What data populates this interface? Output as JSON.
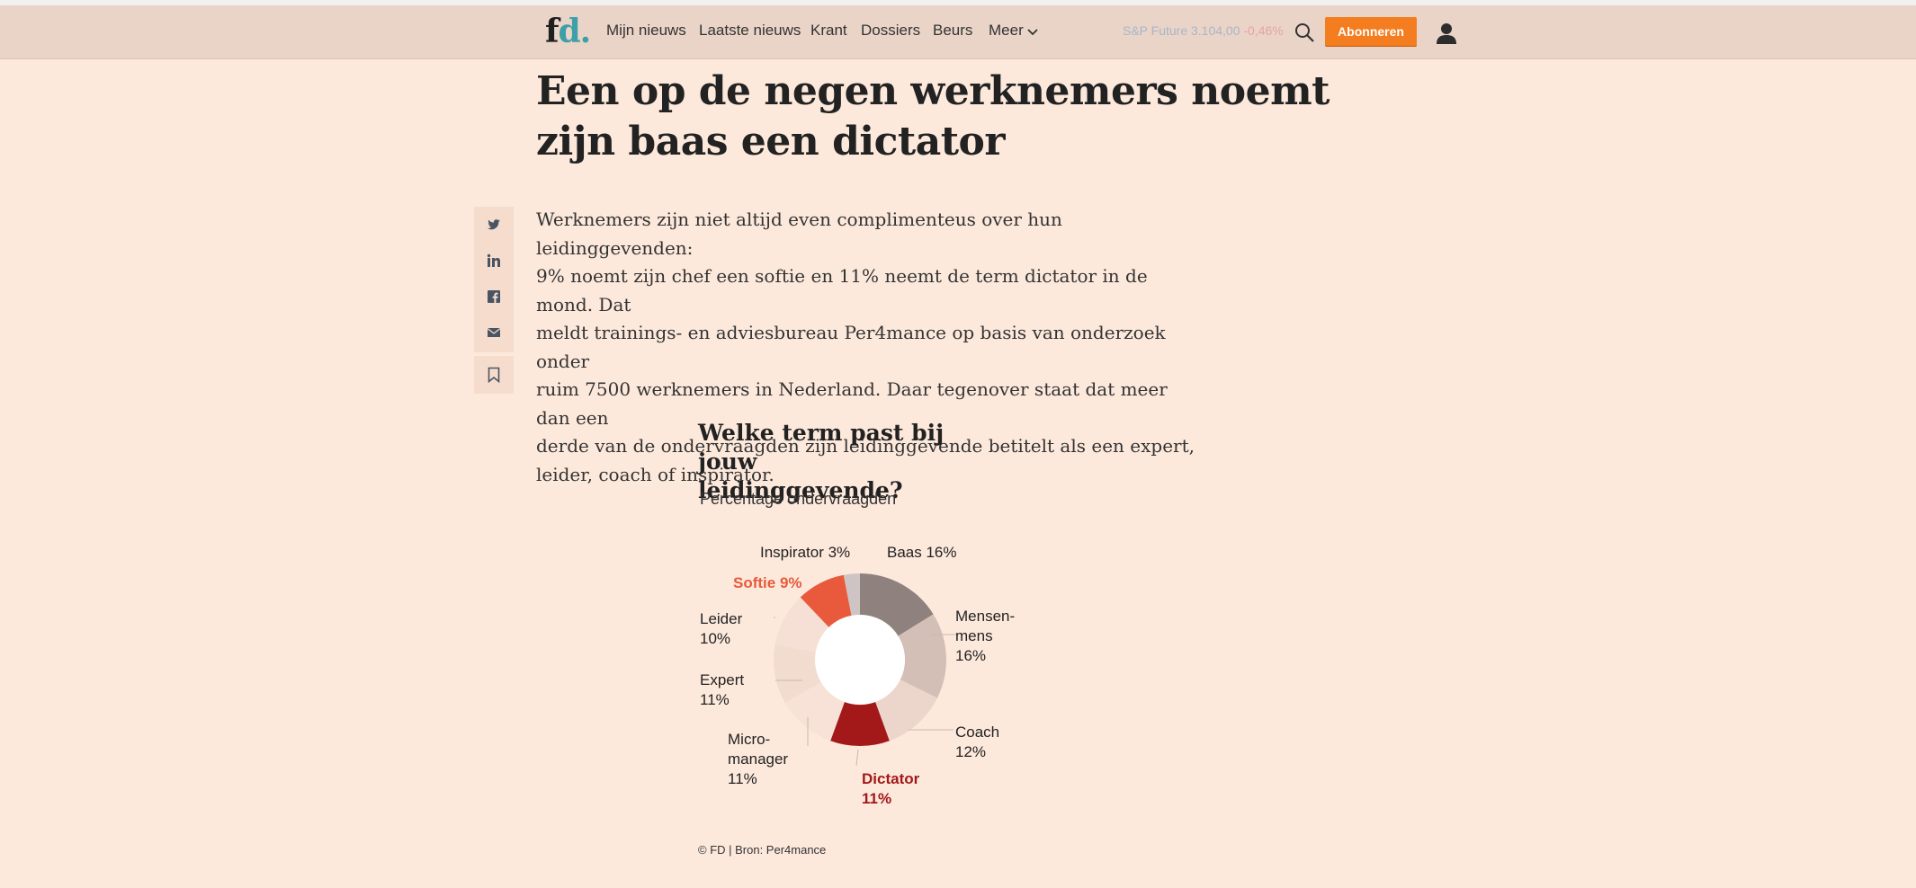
{
  "nav": {
    "logo_f": "f",
    "logo_d": "d.",
    "items": [
      "Mijn nieuws",
      "Laatste nieuws",
      "Krant",
      "Dossiers",
      "Beurs",
      "Meer"
    ],
    "ticker_name": "S&P Future 3.104,00",
    "ticker_change": "-0,46%",
    "subscribe_label": "Abonneren"
  },
  "article": {
    "headline_line1": "Een op de negen werknemers noemt",
    "headline_line2": "zijn baas een dictator",
    "lede_lines": [
      "Werknemers zijn niet altijd even complimenteus over hun leidinggevenden:",
      "9% noemt zijn chef een softie en 11% neemt de term dictator in de mond. Dat",
      "meldt trainings- en adviesbureau Per4mance op basis van onderzoek onder",
      "ruim 7500 werknemers in Nederland. Daar tegenover staat dat meer dan een",
      "derde van de ondervraagden zijn leidinggevende betitelt als een expert,",
      "leider, coach of inspirator."
    ]
  },
  "share": [
    "twitter-icon",
    "linkedin-icon",
    "facebook-icon",
    "mail-icon"
  ],
  "chart_data": {
    "type": "pie",
    "title_line1": "Welke term past bij jouw",
    "title_line2": "leidinggevende?",
    "subtitle": "Percentage ondervraagden",
    "source": "© FD | Bron: Per4mance",
    "slices": [
      {
        "label": "Baas",
        "value": 16,
        "color": "#8f817e"
      },
      {
        "label": "Mensen-mens",
        "value": 16,
        "color": "#d3bfb6"
      },
      {
        "label": "Coach",
        "value": 12,
        "color": "#ecd5ca"
      },
      {
        "label": "Dictator",
        "value": 11,
        "color": "#a31818"
      },
      {
        "label": "Micro-manager",
        "value": 11,
        "color": "#f8e1d6"
      },
      {
        "label": "Expert",
        "value": 11,
        "color": "#f2dbcf"
      },
      {
        "label": "Leider",
        "value": 10,
        "color": "#f6e0d5"
      },
      {
        "label": "Softie",
        "value": 9,
        "color": "#e85a3b"
      },
      {
        "label": "Inspirator",
        "value": 3,
        "color": "#cfc4c4"
      }
    ],
    "labels": {
      "inspirator": "Inspirator 3%",
      "baas": "Baas 16%",
      "softie": "Softie 9%",
      "mensen_1": "Mensen-",
      "mensen_2": "mens",
      "mensen_3": "16%",
      "leider_1": "Leider",
      "leider_2": "10%",
      "expert_1": "Expert",
      "expert_2": "11%",
      "coach_1": "Coach",
      "coach_2": "12%",
      "micro_1": "Micro-",
      "micro_2": "manager",
      "micro_3": "11%",
      "dictator_1": "Dictator",
      "dictator_2": "11%"
    }
  }
}
